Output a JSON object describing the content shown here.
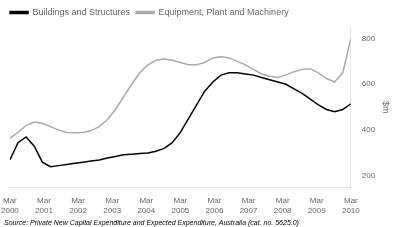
{
  "chart_data": {
    "type": "line",
    "ylabel": "$m",
    "source": "Source: Private New Capital Expenditure and Expected Expenditure, Australia (cat. no. 5625.0)",
    "x": [
      0,
      0.238095238095,
      0.47619047619,
      0.714285714286,
      0.952380952381,
      1.190476190476,
      1.428571428571,
      1.666666666667,
      1.904761904762,
      2.142857142857,
      2.380952380952,
      2.619047619048,
      2.857142857143,
      3.095238095238,
      3.333333333333,
      3.571428571429,
      3.809523809524,
      4.047619047619,
      4.285714285714,
      4.52380952381,
      4.761904761905,
      5,
      5.238095238095,
      5.47619047619,
      5.714285714286,
      5.952380952381,
      6.190476190476,
      6.428571428571,
      6.666666666667,
      6.904761904762,
      7.142857142857,
      7.380952380952,
      7.619047619048,
      7.857142857143,
      8.095238095238,
      8.333333333333,
      8.571428571429,
      8.809523809524,
      9.047619047619,
      9.285714285714,
      9.52380952381,
      9.761904761905,
      10
    ],
    "series": [
      {
        "name": "Buildings and Structures",
        "color": "#000000",
        "values": [
          270,
          345,
          370,
          330,
          260,
          240,
          245,
          250,
          255,
          260,
          265,
          270,
          278,
          285,
          292,
          295,
          298,
          300,
          308,
          320,
          345,
          390,
          450,
          510,
          570,
          610,
          640,
          650,
          650,
          645,
          640,
          630,
          620,
          610,
          600,
          580,
          560,
          535,
          510,
          490,
          480,
          490,
          515
        ]
      },
      {
        "name": "Equipment, Plant and Machinery",
        "color": "#aaaaaa",
        "values": [
          365,
          390,
          420,
          435,
          430,
          415,
          400,
          390,
          388,
          390,
          398,
          415,
          445,
          490,
          545,
          600,
          650,
          685,
          705,
          710,
          705,
          695,
          685,
          685,
          695,
          715,
          720,
          715,
          700,
          685,
          665,
          645,
          635,
          630,
          640,
          655,
          665,
          668,
          650,
          625,
          610,
          650,
          800
        ]
      }
    ],
    "xlim": [
      0,
      10
    ],
    "xticks": [
      {
        "value": 0,
        "label": "Mar\n2000"
      },
      {
        "value": 1,
        "label": "Mar\n2001"
      },
      {
        "value": 2,
        "label": "Mar\n2002"
      },
      {
        "value": 3,
        "label": "Mar\n2003"
      },
      {
        "value": 4,
        "label": "Mar\n2004"
      },
      {
        "value": 5,
        "label": "Mar\n2005"
      },
      {
        "value": 6,
        "label": "Mar\n2006"
      },
      {
        "value": 7,
        "label": "Mar\n2007"
      },
      {
        "value": 8,
        "label": "Mar\n2008"
      },
      {
        "value": 9,
        "label": "Mar\n2009"
      },
      {
        "value": 10,
        "label": "Mar\n2010"
      }
    ],
    "ylim": [
      150,
      850
    ],
    "yticks": [
      200,
      400,
      600,
      800
    ],
    "grid": false,
    "legend": "upper left"
  }
}
